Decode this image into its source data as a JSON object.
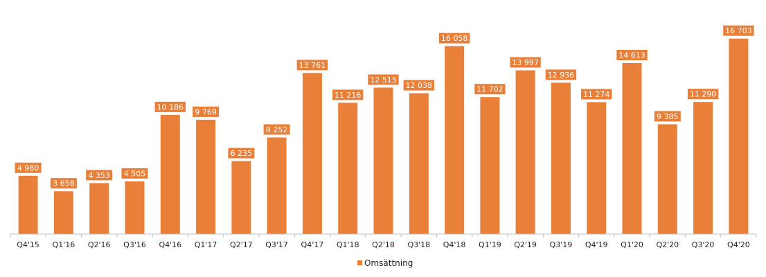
{
  "chart_data": {
    "type": "bar",
    "categories": [
      "Q4'15",
      "Q1'16",
      "Q2'16",
      "Q3'16",
      "Q4'16",
      "Q1'17",
      "Q2'17",
      "Q3'17",
      "Q4'17",
      "Q1'18",
      "Q2'18",
      "Q3'18",
      "Q4'18",
      "Q1'19",
      "Q2'19",
      "Q3'19",
      "Q4'19",
      "Q1'20",
      "Q2'20",
      "Q3'20",
      "Q4'20"
    ],
    "series": [
      {
        "name": "Omsättning",
        "values": [
          4980,
          3658,
          4353,
          4505,
          10186,
          9769,
          6235,
          8252,
          13761,
          11216,
          12515,
          12038,
          16058,
          11702,
          13997,
          12936,
          11274,
          14613,
          9385,
          11290,
          16703
        ],
        "labels": [
          "4 980",
          "3 658",
          "4 353",
          "4 505",
          "10 186",
          "9 769",
          "6 235",
          "8 252",
          "13 761",
          "11 216",
          "12 515",
          "12 038",
          "16 058",
          "11 702",
          "13 997",
          "12 936",
          "11 274",
          "14 613",
          "9 385",
          "11 290",
          "16 703"
        ]
      }
    ],
    "ylim": [
      0,
      20000
    ],
    "grid": false,
    "legend": "bottom-center",
    "colors": {
      "bar": "#E8803A",
      "axis": "#BFBFBF",
      "label_text": "#ffffff"
    }
  }
}
